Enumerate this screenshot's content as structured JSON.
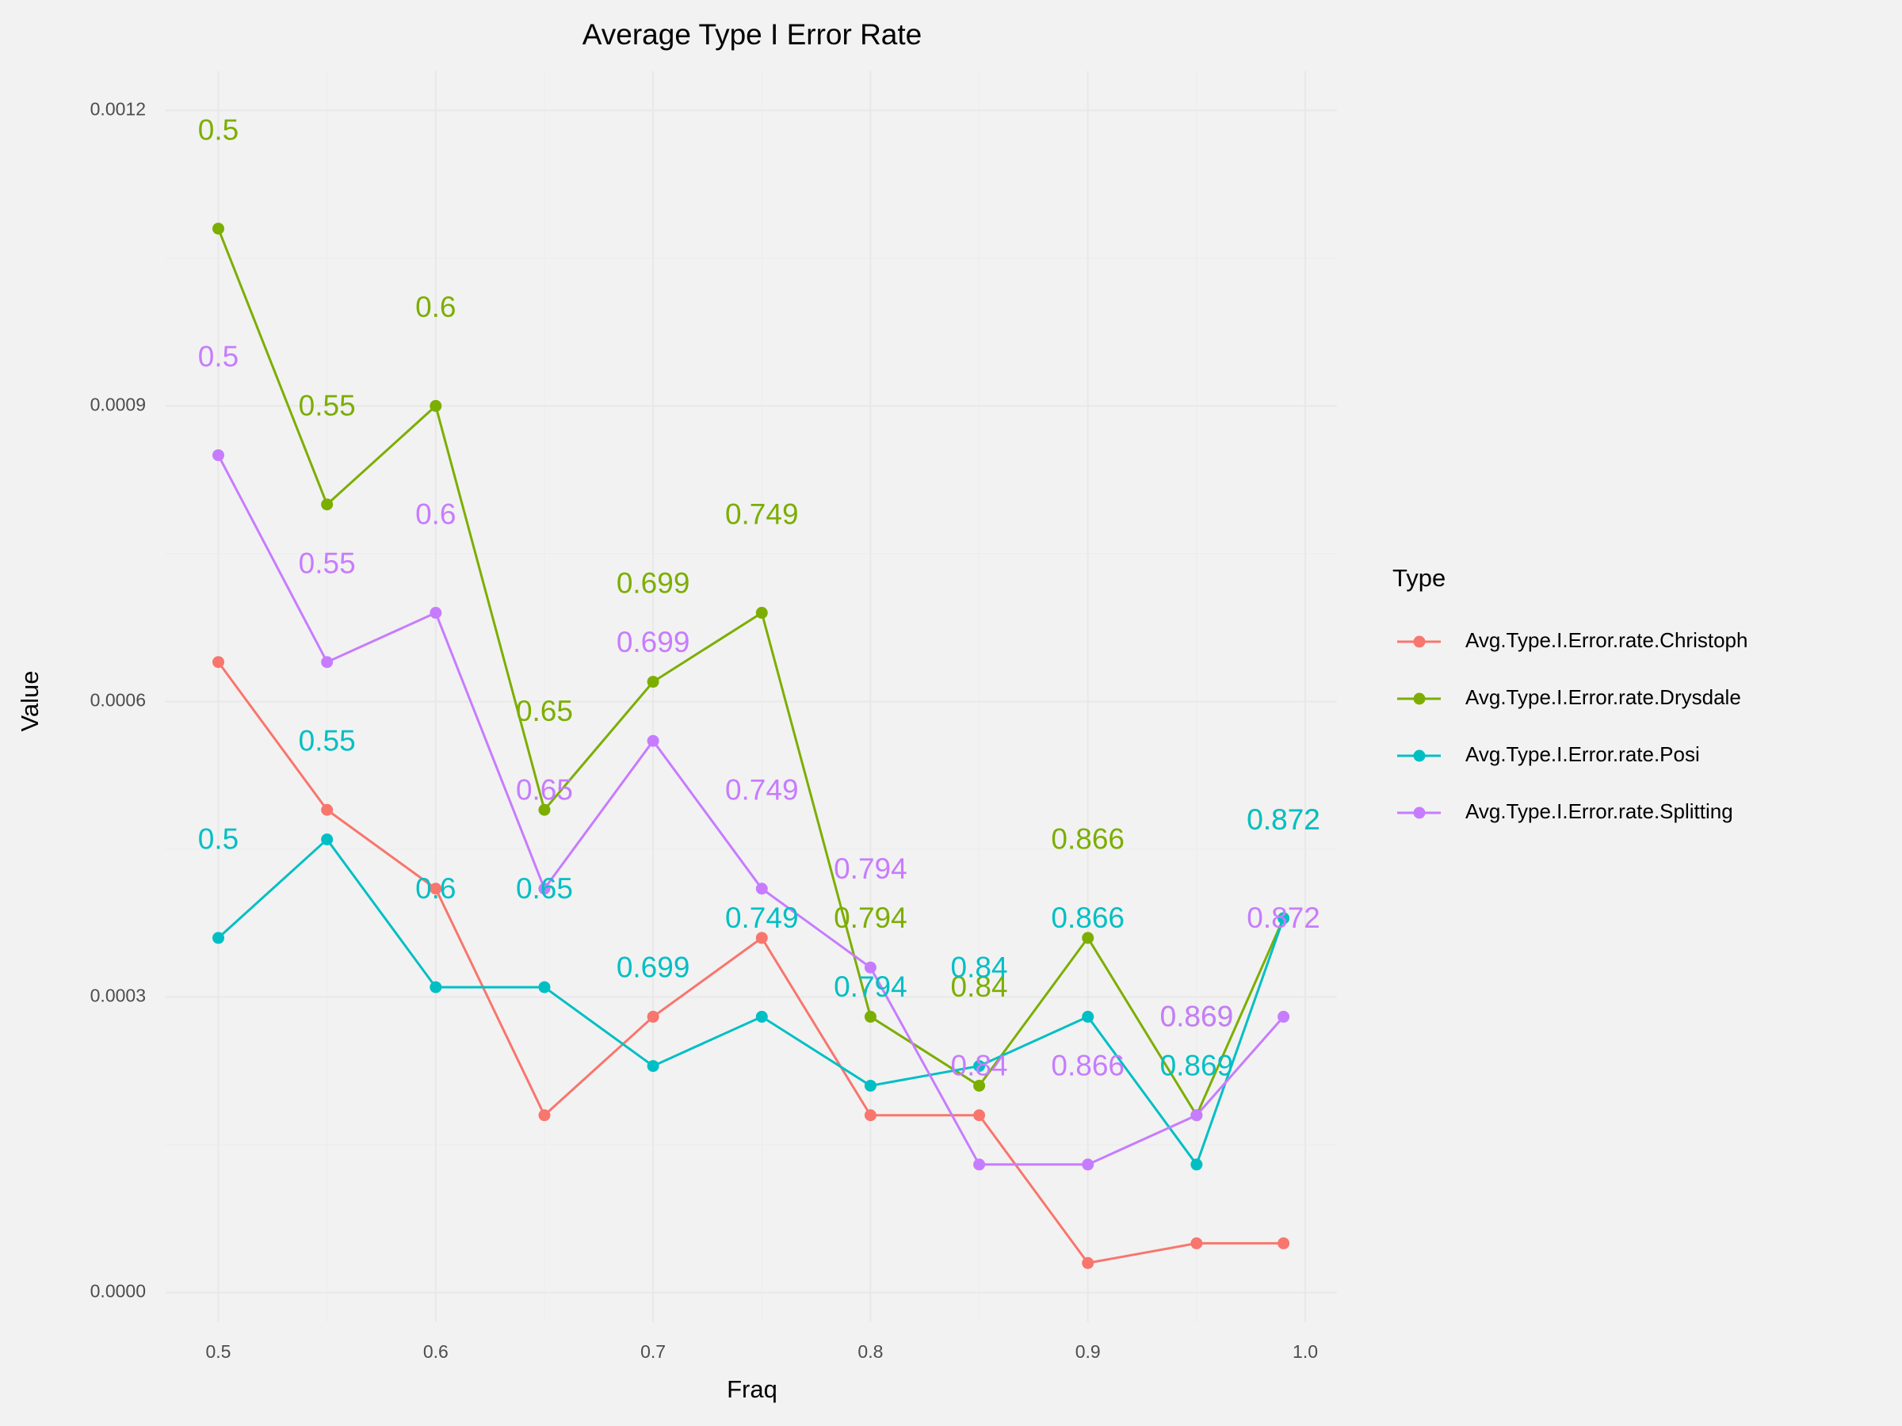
{
  "chart_data": {
    "type": "line",
    "title": "Average Type I Error Rate",
    "x_label": "Fraq",
    "y_label": "Value",
    "legend_title": "Type",
    "legend_position": "right",
    "grid": true,
    "x": [
      0.5,
      0.55,
      0.6,
      0.65,
      0.7,
      0.75,
      0.8,
      0.85,
      0.9,
      0.95,
      0.99
    ],
    "xlim": [
      0.4755,
      1.0145
    ],
    "xticks": [
      0.5,
      0.6,
      0.7,
      0.8,
      0.9,
      {
        "value": 1,
        "label": "1.0"
      }
    ],
    "ylim": [
      -3e-05,
      0.00124
    ],
    "yticks": [
      {
        "value": 0,
        "label": "0.0000"
      },
      {
        "value": 0.0003,
        "label": "0.0003"
      },
      {
        "value": 0.0006,
        "label": "0.0006"
      },
      {
        "value": 0.0009,
        "label": "0.0009"
      },
      {
        "value": 0.0012,
        "label": "0.0012"
      }
    ],
    "series": [
      {
        "name": "Avg.Type.I.Error.rate.Christoph",
        "color": "#F8766D",
        "values": [
          0.00064,
          0.00049,
          0.00041,
          0.00018,
          0.00028,
          0.00036,
          0.00018,
          0.00018,
          3e-05,
          5e-05,
          5e-05
        ]
      },
      {
        "name": "Avg.Type.I.Error.rate.Drysdale",
        "color": "#7CAE00",
        "values": [
          0.00108,
          0.0008,
          0.0009,
          0.00049,
          0.00062,
          0.00069,
          0.00028,
          0.00021,
          0.00036,
          0.00018,
          0.00038
        ],
        "labels": [
          "0.5",
          "0.55",
          "0.6",
          "0.65",
          "0.699",
          "0.749",
          "0.794",
          "0.84",
          "0.866",
          "0.869",
          "0.872"
        ]
      },
      {
        "name": "Avg.Type.I.Error.rate.Posi",
        "color": "#00BFC4",
        "values": [
          0.00036,
          0.00046,
          0.00031,
          0.00031,
          0.00023,
          0.00028,
          0.00021,
          0.00023,
          0.00028,
          0.00013,
          0.00038
        ],
        "labels": [
          "0.5",
          "0.55",
          "0.6",
          "0.65",
          "0.699",
          "0.749",
          "0.794",
          "0.84",
          "0.866",
          "0.869",
          "0.872"
        ]
      },
      {
        "name": "Avg.Type.I.Error.rate.Splitting",
        "color": "#C77CFF",
        "values": [
          0.00085,
          0.00064,
          0.00069,
          0.00041,
          0.00056,
          0.00041,
          0.00033,
          0.00013,
          0.00013,
          0.00018,
          0.00028
        ],
        "labels": [
          "0.5",
          "0.55",
          "0.6",
          "0.65",
          "0.699",
          "0.749",
          "0.794",
          "0.84",
          "0.866",
          "0.869",
          "0.872"
        ]
      }
    ]
  }
}
